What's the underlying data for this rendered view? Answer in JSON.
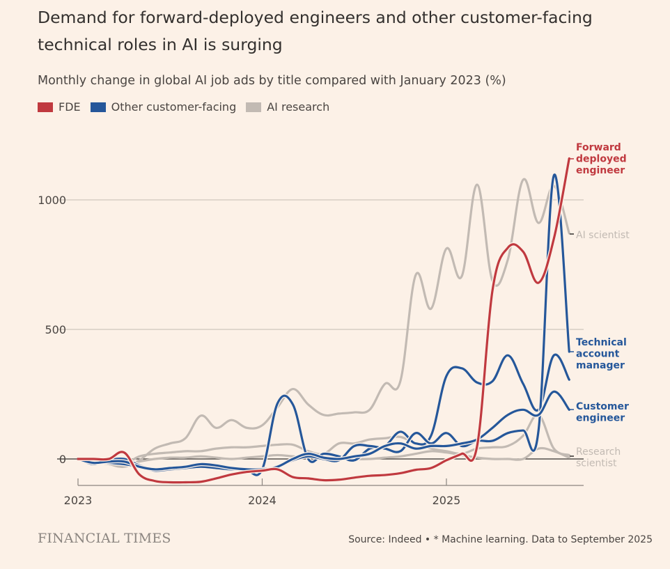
{
  "header": {
    "title": "Demand for forward-deployed engineers and other customer-facing technical roles in AI is surging",
    "subtitle": "Monthly change in global AI job ads by title compared with January 2023 (%)"
  },
  "legend": [
    {
      "label": "FDE",
      "color": "#c0393f"
    },
    {
      "label": "Other customer-facing",
      "color": "#25579a"
    },
    {
      "label": "AI research",
      "color": "#c2bab3"
    }
  ],
  "footer": {
    "logo": "FINANCIAL TIMES",
    "source": "Source: Indeed • * Machine learning. Data to September 2025"
  },
  "chart_data": {
    "type": "line",
    "x_start": "2023-01",
    "x_end": "2025-09",
    "x_frequency": "monthly",
    "xticks": [
      "2023",
      "2024",
      "2025"
    ],
    "yticks": [
      0,
      500,
      1000
    ],
    "ylim": [
      -100,
      1200
    ],
    "grid": true,
    "legend_position": "top-left",
    "series": [
      {
        "group": "AI research",
        "name": "AI scientist",
        "color": "#c2bab3",
        "values": [
          0,
          -10,
          -20,
          -30,
          -5,
          40,
          60,
          80,
          167,
          120,
          150,
          120,
          130,
          200,
          270,
          210,
          170,
          175,
          180,
          190,
          290,
          300,
          710,
          580,
          812,
          705,
          1059,
          688,
          769,
          1078,
          911,
          1054,
          871
        ]
      },
      {
        "group": "AI research",
        "name": "Research scientist",
        "color": "#c2bab3",
        "values": [
          0,
          -10,
          -20,
          -25,
          -10,
          0,
          5,
          5,
          10,
          5,
          0,
          5,
          10,
          15,
          10,
          5,
          10,
          5,
          0,
          0,
          5,
          10,
          20,
          30,
          25,
          15,
          5,
          0,
          0,
          0,
          40,
          30,
          5
        ]
      },
      {
        "group": "AI research",
        "color": "#c2bab3",
        "values": [
          0,
          -5,
          -15,
          -20,
          10,
          20,
          25,
          30,
          30,
          40,
          45,
          45,
          50,
          55,
          55,
          30,
          20,
          60,
          60,
          75,
          80,
          85,
          60,
          40,
          30,
          20,
          40,
          45,
          50,
          90,
          170,
          40,
          15
        ]
      },
      {
        "group": "Other customer-facing",
        "color": "#25579a",
        "values": [
          0,
          -20,
          -5,
          0,
          -25,
          -40,
          -40,
          -35,
          -30,
          -35,
          -40,
          -45,
          -40,
          215,
          210,
          0,
          20,
          10,
          -5,
          40,
          50,
          105,
          60,
          90,
          320,
          350,
          295,
          300,
          400,
          290,
          190,
          400,
          306
        ]
      },
      {
        "group": "Other customer-facing",
        "name": "Technical account manager",
        "color": "#25579a",
        "values": [
          0,
          -10,
          -15,
          -20,
          -30,
          -45,
          -40,
          -35,
          -30,
          -35,
          -40,
          -40,
          -40,
          -30,
          -5,
          10,
          0,
          -5,
          50,
          50,
          40,
          30,
          100,
          60,
          100,
          50,
          70,
          70,
          100,
          110,
          110,
          1094,
          414
        ]
      },
      {
        "group": "Other customer-facing",
        "name": "Customer engineer",
        "color": "#25579a",
        "values": [
          0,
          -15,
          -10,
          -10,
          -30,
          -40,
          -35,
          -30,
          -20,
          -25,
          -35,
          -40,
          -40,
          -30,
          0,
          20,
          5,
          0,
          10,
          20,
          50,
          60,
          40,
          50,
          50,
          60,
          75,
          120,
          170,
          190,
          170,
          260,
          190
        ]
      },
      {
        "group": "FDE",
        "name": "Forward deployed engineer",
        "color": "#c0393f",
        "values": [
          0,
          0,
          0,
          25,
          -60,
          -85,
          -90,
          -90,
          -88,
          -75,
          -60,
          -50,
          -45,
          -40,
          -70,
          -75,
          -82,
          -80,
          -72,
          -65,
          -62,
          -55,
          -42,
          -35,
          -5,
          20,
          50,
          650,
          815,
          800,
          680,
          850,
          1160
        ]
      }
    ],
    "end_labels": [
      {
        "text": "Forward deployed engineer",
        "lines": [
          "Forward",
          "deployed",
          "engineer"
        ],
        "color": "#c0393f"
      },
      {
        "text": "AI scientist",
        "lines": [
          "AI scientist"
        ],
        "color": "#c2bab3"
      },
      {
        "text": "Technical account manager",
        "lines": [
          "Technical",
          "account",
          "manager"
        ],
        "color": "#25579a"
      },
      {
        "text": "Customer engineer",
        "lines": [
          "Customer",
          "engineer"
        ],
        "color": "#25579a"
      },
      {
        "text": "Research scientist",
        "lines": [
          "Research",
          "scientist"
        ],
        "color": "#c2bab3"
      }
    ]
  }
}
